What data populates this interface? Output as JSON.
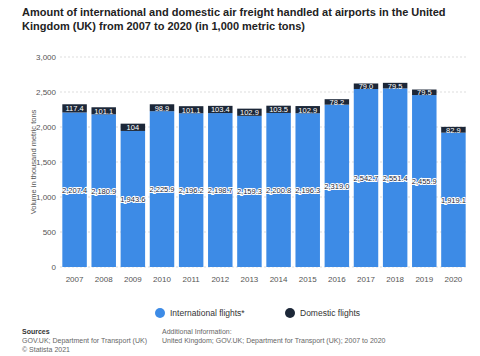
{
  "chart_data": {
    "type": "bar",
    "title": "Amount of international and domestic air freight handled at airports in the United Kingdom (UK) from 2007 to 2020 (in 1,000 metric tons)",
    "y_label": "Volume in thousand metric tons",
    "categories": [
      "2007",
      "2008",
      "2009",
      "2010",
      "2011",
      "2012",
      "2013",
      "2014",
      "2015",
      "2016",
      "2017",
      "2018",
      "2019",
      "2020"
    ],
    "series": [
      {
        "name": "International flights*",
        "color": "#3d8be6",
        "values": [
          2207.4,
          2180.9,
          1943.6,
          2225.9,
          2196.2,
          2198.7,
          2159.3,
          2200.8,
          2196.3,
          2319.0,
          2542.7,
          2551.4,
          2455.9,
          1919.1
        ],
        "value_labels": [
          "2,207.4",
          "2,180.9",
          "1,943.6",
          "2,225.9",
          "2,196.2",
          "2,198.7",
          "2,159.3",
          "2,200.8",
          "2,196.3",
          "2,319.0",
          "2,542.7",
          "2,551.4",
          "2,455.9",
          "1,919.1"
        ]
      },
      {
        "name": "Domestic flights",
        "color": "#1c2738",
        "values": [
          117.4,
          101.1,
          104,
          98.9,
          101.1,
          103.4,
          102.9,
          103.5,
          102.9,
          78.2,
          79.0,
          79.5,
          79.5,
          82.9
        ],
        "value_labels": [
          "117.4",
          "101.1",
          "104",
          "98.9",
          "101.1",
          "103.4",
          "102.9",
          "103.5",
          "102.9",
          "78.2",
          "79.0",
          "79.5",
          "79.5",
          "82.9"
        ]
      }
    ],
    "ylim": [
      0,
      3000
    ],
    "yticks": [
      0,
      500,
      {
        "value": 1000,
        "label": "1,000"
      },
      {
        "value": 1500,
        "label": "1,500"
      },
      {
        "value": 2000,
        "label": "2,000"
      },
      {
        "value": 2500,
        "label": "2,500"
      },
      {
        "value": 3000,
        "label": "3,000"
      }
    ],
    "grid": true,
    "stacked": true,
    "data_labels": true,
    "legend": "bottom",
    "annotations": [
      "Sources",
      "GOV.UK; Department for Transport (UK)",
      "© Statista 2021",
      "Additional Information:",
      "United Kingdom; GOV.UK; Department for Transport (UK); 2007 to 2020"
    ]
  }
}
